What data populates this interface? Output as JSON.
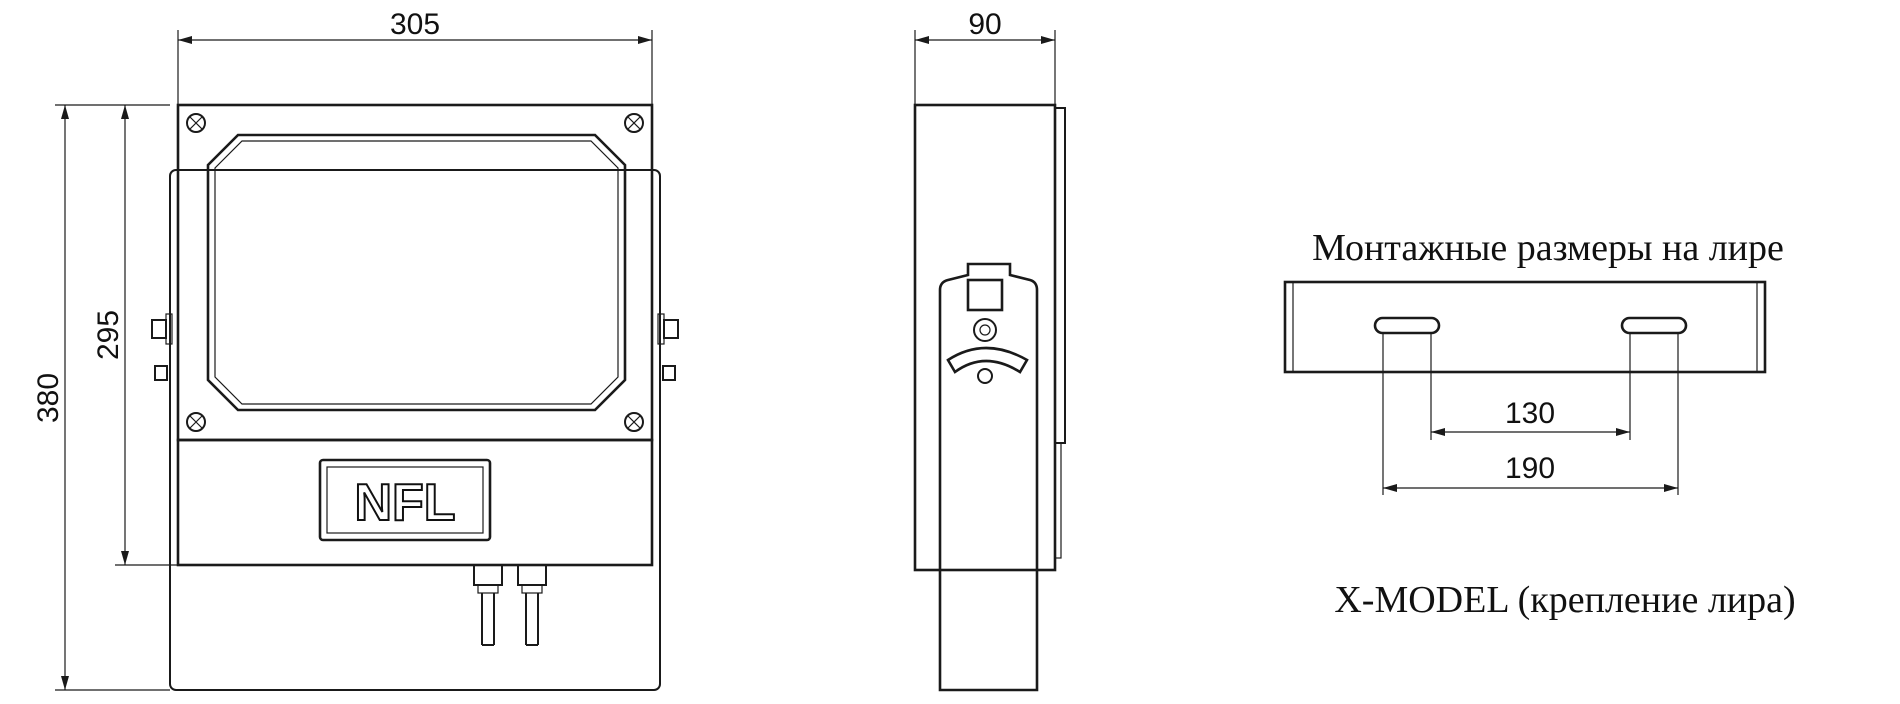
{
  "dimensions": {
    "front_width": "305",
    "front_height_outer": "380",
    "front_height_inner": "295",
    "side_depth": "90",
    "bracket_inner": "130",
    "bracket_outer": "190"
  },
  "logo": {
    "text": "NFL"
  },
  "labels": {
    "mounting_title": "Монтажные размеры на лире",
    "model_caption": "X-MODEL (крепление лира)"
  }
}
